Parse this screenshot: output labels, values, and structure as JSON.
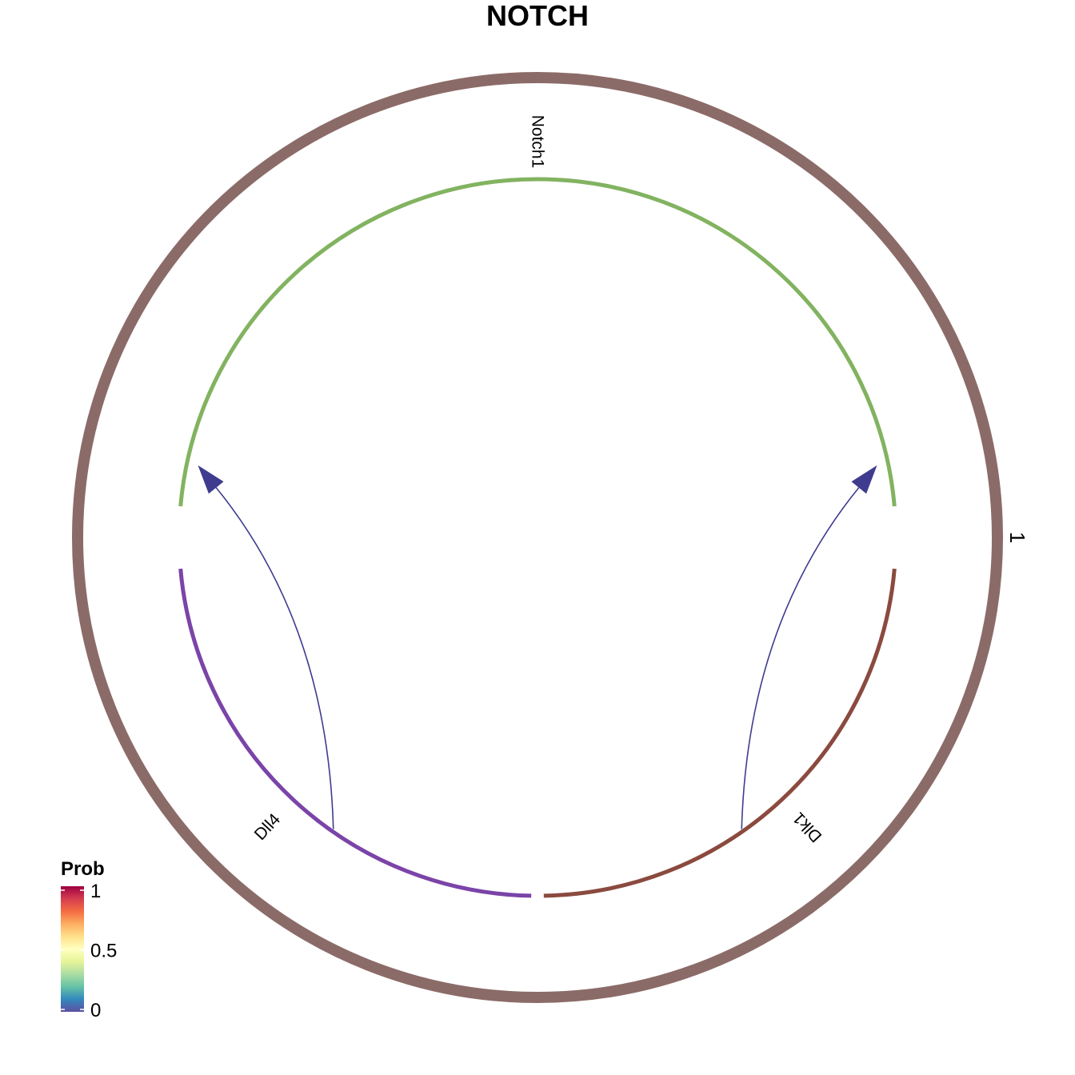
{
  "title": "NOTCH",
  "chart_data": {
    "type": "chord",
    "title": "NOTCH",
    "outer_group": {
      "label": "1",
      "color": "#8B6B68"
    },
    "sectors": [
      {
        "name": "Notch1",
        "color": "#82B360",
        "start_deg": -85,
        "end_deg": 85
      },
      {
        "name": "Dlk1",
        "color": "#8B4A3F",
        "start_deg": 95,
        "end_deg": 179
      },
      {
        "name": "Dll4",
        "color": "#7B44A8",
        "start_deg": 181,
        "end_deg": 265
      }
    ],
    "links": [
      {
        "source": "Dll4",
        "target": "Notch1",
        "prob": 0.0,
        "color": "#3F3C8F"
      },
      {
        "source": "Dlk1",
        "target": "Notch1",
        "prob": 0.0,
        "color": "#3F3C8F"
      }
    ],
    "legend": {
      "title": "Prob",
      "ticks": [
        {
          "value": 1,
          "label": "1"
        },
        {
          "value": 0.5,
          "label": "0.5"
        },
        {
          "value": 0,
          "label": "0"
        }
      ],
      "colors": [
        "#9E0142",
        "#D53E4F",
        "#F46D43",
        "#FDAE61",
        "#FEE08B",
        "#FFFFBF",
        "#E6F598",
        "#ABDDA4",
        "#66C2A5",
        "#3288BD",
        "#5E4FA2"
      ]
    }
  }
}
